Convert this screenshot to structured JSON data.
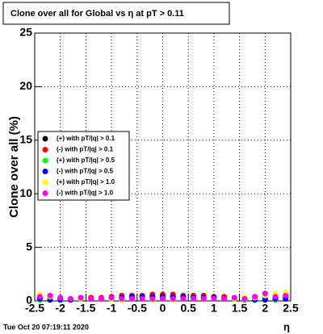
{
  "chart_data": {
    "type": "scatter",
    "title": "Clone  over all for Global vs  η at pT > 0.11",
    "x_label": "η",
    "y_label": "Clone  over all (%)",
    "footer": "Tue Oct 20 07:19:11 2020",
    "xlim": [
      -2.5,
      2.5
    ],
    "ylim": [
      0,
      25
    ],
    "xticks": [
      -2.5,
      -2,
      -1.5,
      -1,
      -0.5,
      0,
      0.5,
      1,
      1.5,
      2,
      2.5
    ],
    "yticks": [
      0,
      5,
      10,
      15,
      20,
      25
    ],
    "grid": true,
    "x": [
      -2.4,
      -2.2,
      -2,
      -1.8,
      -1.6,
      -1.4,
      -1.2,
      -1,
      -0.8,
      -0.6,
      -0.4,
      -0.2,
      0,
      0.2,
      0.4,
      0.6,
      0.8,
      1,
      1.2,
      1.4,
      1.6,
      1.8,
      2,
      2.2,
      2.4
    ],
    "series": [
      {
        "name": "(+) with pT/|q| > 0.1",
        "color": "#000000",
        "values": [
          0.2,
          0.1,
          0.2,
          0.1,
          0.2,
          0.3,
          0.2,
          0.3,
          0.3,
          0.4,
          0.4,
          0.4,
          0.4,
          0.4,
          0.4,
          0.3,
          0.3,
          0.3,
          0.2,
          0.2,
          0.2,
          0.1,
          0.2,
          0.2,
          0.3
        ]
      },
      {
        "name": "(-) with pT/|q| > 0.1",
        "color": "#ff0000",
        "values": [
          0.3,
          0.2,
          0.2,
          0.2,
          0.3,
          0.3,
          0.3,
          0.4,
          0.5,
          0.5,
          0.5,
          0.6,
          0.6,
          0.6,
          0.5,
          0.5,
          0.5,
          0.4,
          0.4,
          0.3,
          0.3,
          0.2,
          0.2,
          0.3,
          0.3
        ]
      },
      {
        "name": "(+) with pT/|q| > 0.5",
        "color": "#00ff00",
        "values": [
          0.1,
          0.1,
          0.1,
          0.1,
          0.2,
          0.2,
          0.2,
          0.2,
          0.3,
          0.3,
          0.3,
          0.3,
          0.3,
          0.3,
          0.3,
          0.3,
          0.2,
          0.2,
          0.2,
          0.2,
          0.1,
          0.1,
          0.1,
          0.1,
          0.2
        ]
      },
      {
        "name": "(-) with pT/|q| > 0.5",
        "color": "#0000ff",
        "values": [
          0.2,
          0.1,
          0.1,
          0.1,
          0.2,
          0.2,
          0.2,
          0.3,
          0.3,
          0.4,
          0.4,
          0.4,
          0.4,
          0.4,
          0.4,
          0.3,
          0.3,
          0.3,
          0.2,
          0.2,
          0.2,
          0.1,
          0.1,
          0.2,
          0.2
        ]
      },
      {
        "name": "(+) with pT/|q| > 1.0",
        "color": "#ffff00",
        "values": [
          0.6,
          0.4,
          0.3,
          0.2,
          0.2,
          0.2,
          0.2,
          0.2,
          0.1,
          0.2,
          0.2,
          0.1,
          0.2,
          0.1,
          0.2,
          0.2,
          0.2,
          0.2,
          0.2,
          0.2,
          0.3,
          0.3,
          0.5,
          0.7,
          0.8
        ]
      },
      {
        "name": "(-) with pT/|q| > 1.0",
        "color": "#ff00ff",
        "values": [
          0.4,
          0.5,
          0.3,
          0.2,
          0.3,
          0.2,
          0.2,
          0.3,
          0.2,
          0.2,
          0.2,
          0.2,
          0.2,
          0.2,
          0.2,
          0.2,
          0.2,
          0.2,
          0.2,
          0.3,
          0.2,
          0.4,
          0.7,
          0.4,
          0.5
        ]
      }
    ]
  }
}
